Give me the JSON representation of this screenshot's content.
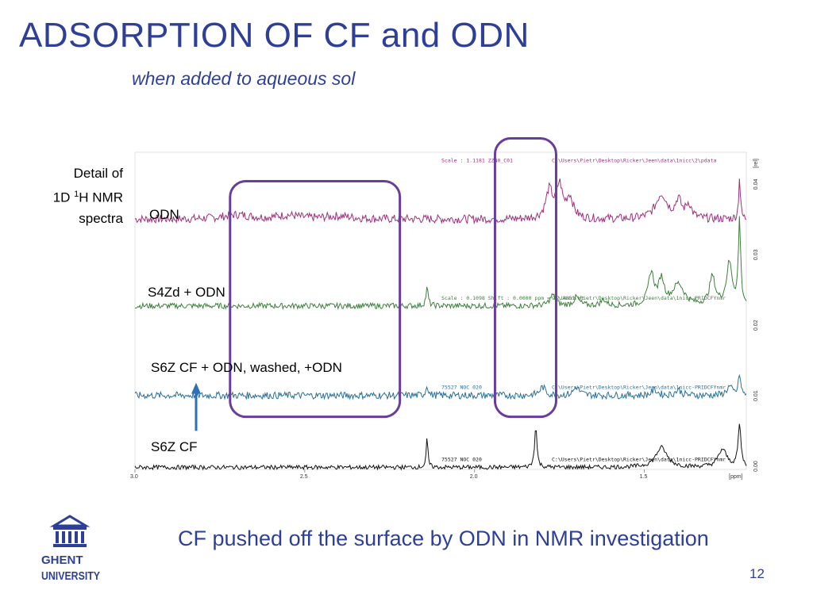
{
  "slide": {
    "title": "ADSORPTION OF CF and ODN",
    "subtitle": "when added to aqueous sol",
    "side_note": {
      "line1": "Detail of",
      "line2_prefix": "1D ",
      "line2_sup": "1",
      "line2_rest": "H NMR",
      "line3": "spectra"
    },
    "caption": "CF pushed off the surface by ODN in NMR investigation",
    "page_number": "12",
    "logo": {
      "line1": "GHENT",
      "line2": "UNIVERSITY"
    }
  },
  "colors": {
    "title": "#2e3f98",
    "highlight_box": "#6a3d9a",
    "arrow": "#2f6fb5",
    "odn": "#a0307e",
    "s4zd_odn": "#3f7f3f",
    "s6z_cf_odn": "#2a6f99",
    "s6z_cf": "#111111"
  },
  "chart_data": {
    "type": "line",
    "title": "",
    "xlabel": "[ppm]",
    "ylabel": "[rel]",
    "x_ticks": [
      "3.0",
      "2.5",
      "2.0",
      "1.5"
    ],
    "y_ticks": [
      "0.00",
      "0.01",
      "0.02",
      "0.03",
      "0.04"
    ],
    "xlim": [
      3.0,
      1.2
    ],
    "ylim": [
      0.0,
      0.045
    ],
    "x_reversed": true,
    "series": [
      {
        "name": "ODN",
        "key": "odn",
        "baseline": 0.0355,
        "noise": 0.0006,
        "peaks": [
          [
            2.7,
            0.0006,
            0.05
          ],
          [
            2.55,
            0.0005,
            0.04
          ],
          [
            2.4,
            0.0004,
            0.05
          ],
          [
            1.78,
            0.004,
            0.012
          ],
          [
            1.75,
            0.0045,
            0.01
          ],
          [
            1.72,
            0.003,
            0.012
          ],
          [
            1.45,
            0.0035,
            0.02
          ],
          [
            1.4,
            0.0025,
            0.01
          ],
          [
            1.37,
            0.002,
            0.01
          ],
          [
            1.22,
            0.006,
            0.003
          ]
        ],
        "meta": [
          "Scale : 1.1181  ZZN0_C01",
          "C:\\Users\\Pietr\\Desktop\\Ricker\\Jeen\\data\\1nicc\\2\\pdata"
        ]
      },
      {
        "name": "S4Zd + ODN",
        "key": "s4zd_odn",
        "baseline": 0.0232,
        "noise": 0.0004,
        "peaks": [
          [
            2.14,
            0.0025,
            0.004
          ],
          [
            1.77,
            0.0015,
            0.01
          ],
          [
            1.7,
            0.0012,
            0.01
          ],
          [
            1.62,
            0.0008,
            0.01
          ],
          [
            1.48,
            0.0045,
            0.01
          ],
          [
            1.45,
            0.0035,
            0.01
          ],
          [
            1.4,
            0.003,
            0.02
          ],
          [
            1.3,
            0.004,
            0.01
          ],
          [
            1.25,
            0.006,
            0.01
          ],
          [
            1.22,
            0.012,
            0.004
          ]
        ],
        "meta": [
          "Scale : 0.1098  Shift : 0.0000 ppm = 42.4051 Hz",
          "C:\\Users\\Pietr\\Desktop\\Ricker\\Jeen\\data\\1nicc-PRIDCFYnmr"
        ]
      },
      {
        "name": "S6Z CF + ODN, washed, +ODN",
        "key": "s6z_cf_odn",
        "baseline": 0.0105,
        "noise": 0.0005,
        "peaks": [
          [
            2.14,
            0.0015,
            0.004
          ],
          [
            1.8,
            0.0012,
            0.01
          ],
          [
            1.7,
            0.0012,
            0.01
          ],
          [
            1.47,
            0.0008,
            0.01
          ],
          [
            1.4,
            0.0008,
            0.01
          ],
          [
            1.25,
            0.0012,
            0.01
          ],
          [
            1.22,
            0.003,
            0.004
          ]
        ],
        "meta": [
          "75527 NOC 020",
          "C:\\Users\\Pietr\\Desktop\\Ricker\\Jeen\\data\\1nicc-PRIDCFYnmr"
        ]
      },
      {
        "name": "S6Z CF",
        "key": "s6z_cf",
        "baseline": 0.0003,
        "noise": 0.0003,
        "peaks": [
          [
            2.14,
            0.004,
            0.003
          ],
          [
            1.82,
            0.006,
            0.004
          ],
          [
            1.45,
            0.0028,
            0.02
          ],
          [
            1.27,
            0.0025,
            0.015
          ],
          [
            1.22,
            0.006,
            0.005
          ]
        ],
        "meta": [
          "75527 NOC 020",
          "C:\\Users\\Pietr\\Desktop\\Ricker\\Jeen\\data\\1nicc-PRIDCFYnmr"
        ]
      }
    ],
    "annotations": {
      "highlight_regions": [
        {
          "x_from": 2.72,
          "x_to": 2.22,
          "series_from": "ODN",
          "series_to": "S6Z CF + ODN, washed, +ODN"
        },
        {
          "x_from": 1.94,
          "x_to": 1.76,
          "series_from": "ODN",
          "series_to": "S6Z CF + ODN, washed, +ODN"
        }
      ],
      "arrow": {
        "x": 2.82,
        "direction": "up",
        "from_series": "S6Z CF",
        "to_series": "S6Z CF + ODN, washed, +ODN"
      }
    }
  }
}
